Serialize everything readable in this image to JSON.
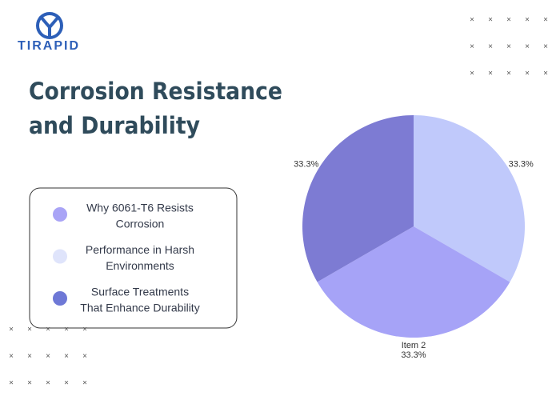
{
  "logo": {
    "text": "TIRAPID"
  },
  "header": {
    "title_lines": [
      "Corrosion Resistance",
      "and Durability"
    ]
  },
  "legend_box": {
    "items": [
      {
        "lines": [
          "Why 6061-T6 Resists",
          "Corrosion"
        ],
        "color": "#a9a4f6"
      },
      {
        "lines": [
          "Performance in Harsh",
          "Environments"
        ],
        "color": "#dfe4fb"
      },
      {
        "lines": [
          "Surface Treatments",
          "That Enhance Durability"
        ],
        "color": "#6e78d6"
      }
    ]
  },
  "chart_data": {
    "type": "pie",
    "categories": [
      null,
      "Item 2",
      null
    ],
    "values": [
      33.3,
      33.3,
      33.3
    ],
    "value_labels": [
      "33.3%",
      "33.3%",
      "33.3%"
    ],
    "colors": [
      "#c0c9fb",
      "#a6a3f7",
      "#7d7bd3"
    ]
  }
}
